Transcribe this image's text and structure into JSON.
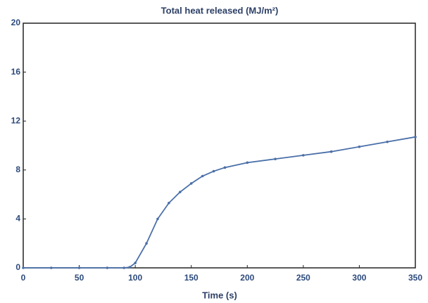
{
  "chart_data": {
    "type": "line",
    "title": "Total heat released (MJ/m²)",
    "x_label": "Time (s)",
    "x": [
      0,
      25,
      50,
      75,
      90,
      95,
      100,
      110,
      120,
      130,
      140,
      150,
      160,
      170,
      180,
      200,
      225,
      250,
      275,
      300,
      325,
      350
    ],
    "series": [
      {
        "name": "Total heat released",
        "color": "#4a6fa8",
        "values": [
          0,
          0,
          0,
          0,
          0,
          0.05,
          0.4,
          2.0,
          4.0,
          5.3,
          6.2,
          6.9,
          7.5,
          7.9,
          8.2,
          8.6,
          8.9,
          9.2,
          9.5,
          9.9,
          10.3,
          10.7
        ]
      }
    ],
    "xlim": [
      0,
      350
    ],
    "xticks": [
      0,
      50,
      100,
      150,
      200,
      250,
      300,
      350
    ],
    "ylim": [
      0,
      20
    ],
    "yticks": [
      0,
      4,
      8,
      12,
      16,
      20
    ]
  }
}
